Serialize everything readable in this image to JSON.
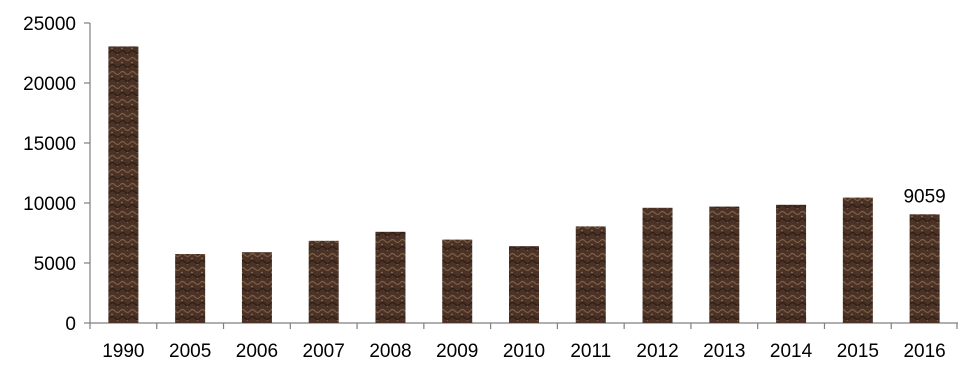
{
  "chart_data": {
    "type": "bar",
    "categories": [
      "1990",
      "2005",
      "2006",
      "2007",
      "2008",
      "2009",
      "2010",
      "2011",
      "2012",
      "2013",
      "2014",
      "2015",
      "2016"
    ],
    "values": [
      23050,
      5750,
      5900,
      6850,
      7600,
      6950,
      6400,
      8050,
      9600,
      9700,
      9850,
      10450,
      9059
    ],
    "data_labels": [
      {
        "category": "2016",
        "text": "9059"
      }
    ],
    "ylim": [
      0,
      25000
    ],
    "yticks": [
      0,
      5000,
      10000,
      15000,
      20000,
      25000
    ],
    "grid": false,
    "bar_color": "#4a3226",
    "bar_highlight_color": "#8a6a4e",
    "axis_color": "#7f7f7f"
  }
}
